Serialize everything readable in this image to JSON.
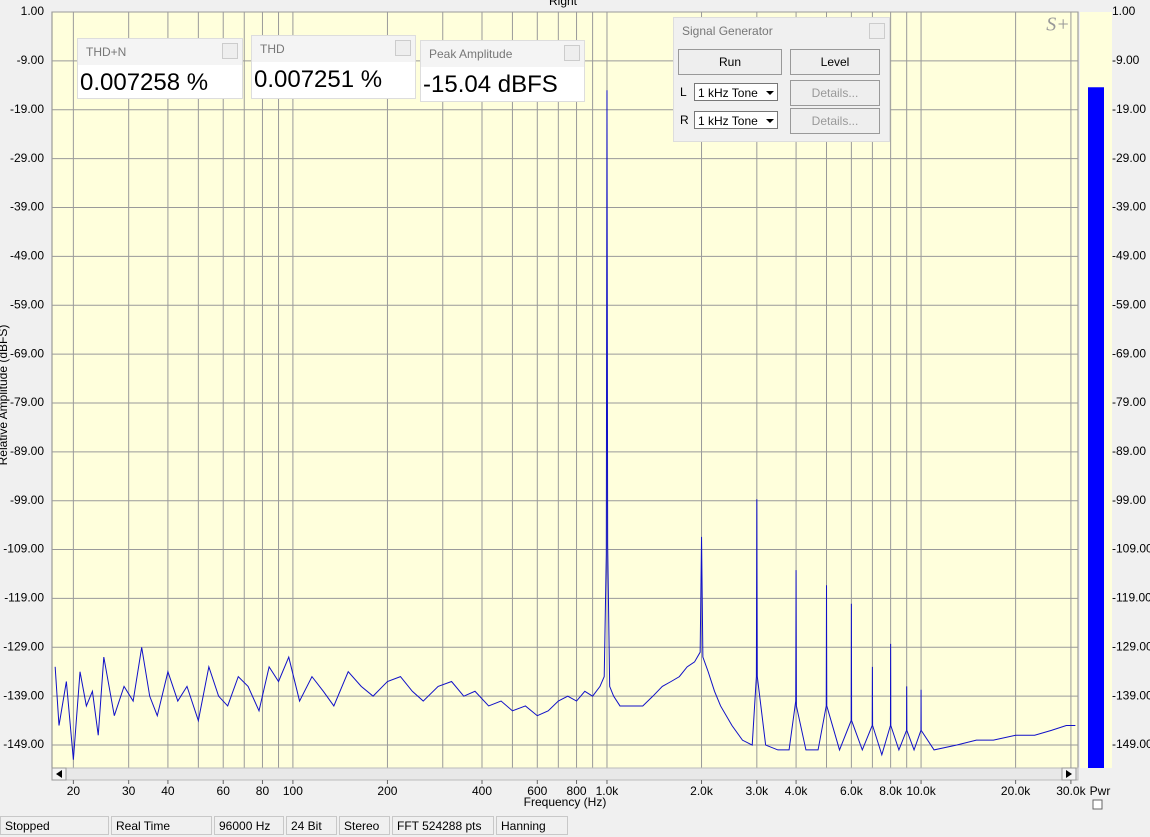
{
  "chart_data": {
    "type": "line",
    "title": "Right",
    "x_label": "Frequency (Hz)",
    "y_label": "Relative Amplitude (dBFS)",
    "log_x": true,
    "grid": true,
    "xlim": [
      17.1,
      31600
    ],
    "ylim": [
      -153.7,
      1
    ],
    "xticks": [
      20,
      30,
      40,
      60,
      80,
      100,
      200,
      400,
      600,
      800,
      {
        "value": 1000,
        "label": "1.0k"
      },
      {
        "value": 2000,
        "label": "2.0k"
      },
      {
        "value": 3000,
        "label": "3.0k"
      },
      {
        "value": 4000,
        "label": "4.0k"
      },
      {
        "value": 6000,
        "label": "6.0k"
      },
      {
        "value": 8000,
        "label": "8.0k"
      },
      {
        "value": 10000,
        "label": "10.0k"
      },
      {
        "value": 20000,
        "label": "20.0k"
      },
      {
        "value": 30000,
        "label": "30.0k"
      }
    ],
    "xgrid": [
      20,
      30,
      40,
      50,
      60,
      70,
      80,
      90,
      100,
      200,
      300,
      400,
      500,
      600,
      700,
      800,
      900,
      1000,
      2000,
      3000,
      4000,
      5000,
      6000,
      7000,
      8000,
      9000,
      10000,
      20000,
      30000
    ],
    "yticks": [
      {
        "value": 1,
        "label": "1.00"
      },
      {
        "value": -9,
        "label": "-9.00"
      },
      {
        "value": -19,
        "label": "-19.00"
      },
      {
        "value": -29,
        "label": "-29.00"
      },
      {
        "value": -39,
        "label": "-39.00"
      },
      {
        "value": -49,
        "label": "-49.00"
      },
      {
        "value": -59,
        "label": "-59.00"
      },
      {
        "value": -69,
        "label": "-69.00"
      },
      {
        "value": -79,
        "label": "-79.00"
      },
      {
        "value": -89,
        "label": "-89.00"
      },
      {
        "value": -99,
        "label": "-99.00"
      },
      {
        "value": -109,
        "label": "-109.00"
      },
      {
        "value": -119,
        "label": "-119.00"
      },
      {
        "value": -129,
        "label": "-129.00"
      },
      {
        "value": -139,
        "label": "-139.00"
      },
      {
        "value": -149,
        "label": "-149.00"
      }
    ],
    "x": [
      17.5,
      18,
      19,
      20,
      21,
      22,
      23,
      24,
      25,
      27,
      29,
      31,
      33,
      35,
      37,
      40,
      43,
      46,
      50,
      54,
      58,
      62,
      67,
      72,
      78,
      84,
      90,
      97,
      105,
      115,
      125,
      135,
      150,
      165,
      180,
      200,
      220,
      240,
      260,
      290,
      320,
      350,
      380,
      420,
      460,
      500,
      550,
      600,
      650,
      700,
      750,
      800,
      850,
      900,
      950,
      980,
      995,
      1000,
      1005,
      1020,
      1050,
      1100,
      1200,
      1300,
      1400,
      1500,
      1600,
      1700,
      1800,
      1900,
      1980,
      2000,
      2020,
      2100,
      2200,
      2300,
      2500,
      2700,
      2900,
      2990,
      3000,
      3010,
      3200,
      3500,
      3800,
      3990,
      4000,
      4010,
      4300,
      4700,
      4990,
      5000,
      5010,
      5500,
      5990,
      6000,
      6010,
      6500,
      6990,
      7000,
      7010,
      7500,
      7990,
      8000,
      8010,
      8500,
      8990,
      9000,
      9010,
      9500,
      9990,
      10000,
      10010,
      11000,
      13000,
      15000,
      17000,
      20000,
      23000,
      26000,
      29000,
      31000
    ],
    "series": [
      {
        "color": "#1010c8",
        "values": [
          -133,
          -145,
          -136,
          -152,
          -134,
          -141,
          -138,
          -147,
          -131,
          -143,
          -137,
          -140,
          -129,
          -139,
          -143,
          -134,
          -140,
          -137,
          -144,
          -133,
          -139,
          -141,
          -135,
          -137,
          -142,
          -133,
          -136,
          -131,
          -140,
          -135,
          -138,
          -141,
          -134,
          -137,
          -139,
          -136,
          -135,
          -138,
          -140,
          -137,
          -136,
          -139,
          -138,
          -141,
          -140,
          -142,
          -141,
          -143,
          -142,
          -140,
          -139,
          -140,
          -138,
          -139,
          -137,
          -135,
          -110,
          -15,
          -108,
          -137,
          -139,
          -141,
          -141,
          -141,
          -139,
          -137,
          -136,
          -135,
          -133,
          -132,
          -130,
          -106.4,
          -131,
          -134,
          -138,
          -141,
          -145,
          -148,
          -149,
          -135,
          -98.7,
          -135,
          -149,
          -150,
          -150,
          -140,
          -113.2,
          -141,
          -150,
          -150,
          -141,
          -116.3,
          -141,
          -150,
          -144,
          -120.1,
          -144,
          -150,
          -145,
          -133,
          -145,
          -151,
          -145,
          -128.3,
          -145,
          -150,
          -146,
          -137,
          -146,
          -150,
          -146,
          -137.7,
          -146,
          -150,
          -149,
          -148,
          -148,
          -147,
          -147,
          -146,
          -145,
          -145
        ]
      }
    ]
  },
  "meters": [
    {
      "title": "THD+N",
      "value": "0.007258 %"
    },
    {
      "title": "THD",
      "value": "0.007251 %"
    },
    {
      "title": "Peak Amplitude",
      "value": "-15.04 dBFS"
    }
  ],
  "signal_generator": {
    "title": "Signal Generator",
    "buttons": [
      "Run",
      "Level"
    ],
    "channels": [
      {
        "label": "L",
        "source": "1 kHz Tone",
        "details": "Details..."
      },
      {
        "label": "R",
        "source": "1 kHz Tone",
        "details": "Details..."
      }
    ]
  },
  "level_meter": {
    "label": "Pwr",
    "value": -14.4,
    "color": "#0000ff"
  },
  "logo": "S+",
  "status_bar": [
    "Stopped",
    "Real Time",
    "96000 Hz",
    "24 Bit",
    "Stereo",
    "FFT 524288 pts",
    "Hanning"
  ]
}
